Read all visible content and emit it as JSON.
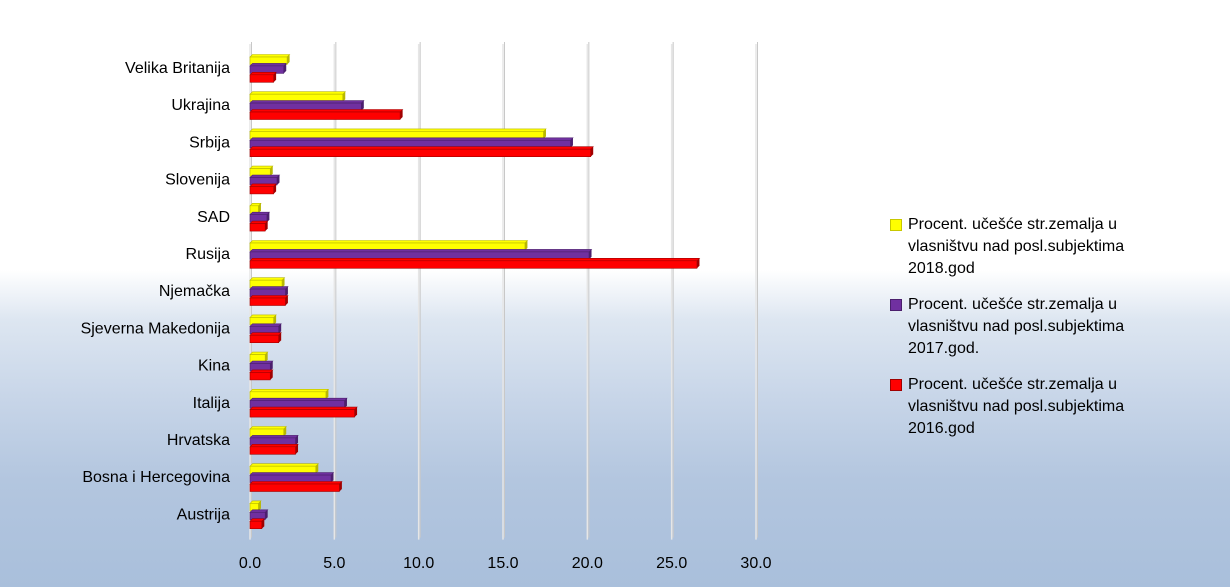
{
  "chart_data": {
    "type": "bar",
    "orientation": "horizontal",
    "categories": [
      "Velika Britanija",
      "Ukrajina",
      "Srbija",
      "Slovenija",
      "SAD",
      "Rusija",
      "Njemačka",
      "Sjeverna Makedonija",
      "Kina",
      "Italija",
      "Hrvatska",
      "Bosna i Hercegovina",
      "Austrija"
    ],
    "series": [
      {
        "name": "Procent. učešće str.zemalja u vlasništvu nad posl.subjektima 2018.god",
        "color": "#ffff00",
        "values": [
          2.2,
          5.5,
          17.4,
          1.2,
          0.5,
          16.3,
          1.9,
          1.4,
          0.9,
          4.5,
          2.0,
          3.9,
          0.5
        ]
      },
      {
        "name": "Procent. učešće str.zemalja u vlasništvu nad posl.subjektima 2017.god.",
        "color": "#7030a0",
        "values": [
          2.0,
          6.6,
          19.0,
          1.6,
          1.0,
          20.1,
          2.1,
          1.7,
          1.2,
          5.6,
          2.7,
          4.8,
          0.9
        ]
      },
      {
        "name": "Procent. učešće str.zemalja u vlasništvu nad posl.subjektima 2016.god",
        "color": "#ff0000",
        "values": [
          1.4,
          8.9,
          20.2,
          1.4,
          0.9,
          26.5,
          2.1,
          1.7,
          1.2,
          6.2,
          2.7,
          5.3,
          0.7
        ]
      }
    ],
    "x_ticks": [
      "0.0",
      "5.0",
      "10.0",
      "15.0",
      "20.0",
      "25.0",
      "30.0"
    ],
    "xlim": [
      0,
      30
    ],
    "grid": true,
    "legend_position": "right",
    "title": "",
    "xlabel": "",
    "ylabel": ""
  }
}
